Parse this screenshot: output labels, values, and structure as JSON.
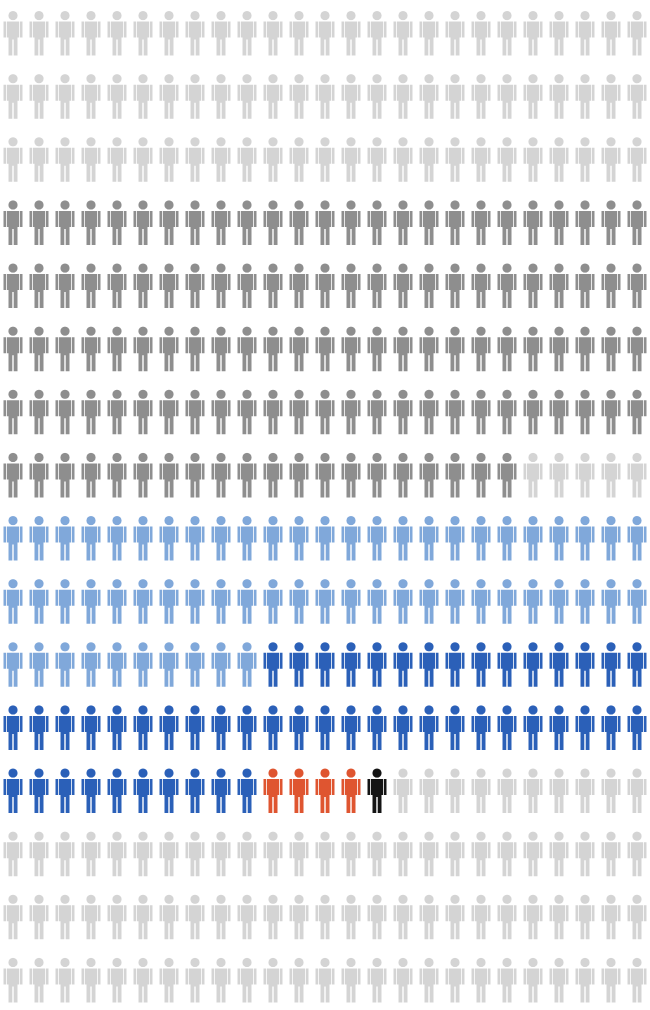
{
  "chart_data": {
    "type": "pictogram",
    "columns": 25,
    "segments": [
      {
        "color": "#d4d4d4",
        "count": 75
      },
      {
        "color": "#8e8e8e",
        "count": 120
      },
      {
        "color": "#d4d4d4",
        "count": 5
      },
      {
        "color": "#80a8da",
        "count": 60
      },
      {
        "color": "#2b60b8",
        "count": 50
      },
      {
        "color": "#df5530",
        "count": 4
      },
      {
        "color": "#141414",
        "count": 1
      },
      {
        "color": "#d4d4d4",
        "count": 85
      }
    ]
  }
}
